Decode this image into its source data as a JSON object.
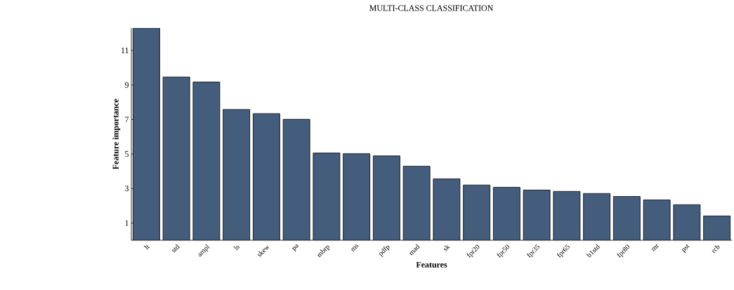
{
  "chart_data": {
    "type": "bar",
    "title": "MULTI-CLASS CLASSIFICATION",
    "xlabel": "Features",
    "ylabel": "Feature importance",
    "categories": [
      "lt",
      "std",
      "ampl",
      "ls",
      "skew",
      "pa",
      "mbrp",
      "ms",
      "pdfp",
      "mad",
      "sk",
      "fpr20",
      "fpr50",
      "fpr35",
      "fpr65",
      "b1std",
      "fpr80",
      "mr",
      "pst",
      "rcb"
    ],
    "values": [
      12.3,
      9.46,
      9.17,
      7.58,
      7.34,
      7.01,
      5.06,
      5.02,
      4.89,
      4.29,
      3.56,
      3.2,
      3.07,
      2.91,
      2.83,
      2.71,
      2.54,
      2.34,
      2.06,
      1.41
    ],
    "color": "#445d7c",
    "ylim": [
      0,
      12.3
    ],
    "yticks": [
      1,
      3,
      5,
      7,
      9,
      11
    ],
    "grid": false
  }
}
